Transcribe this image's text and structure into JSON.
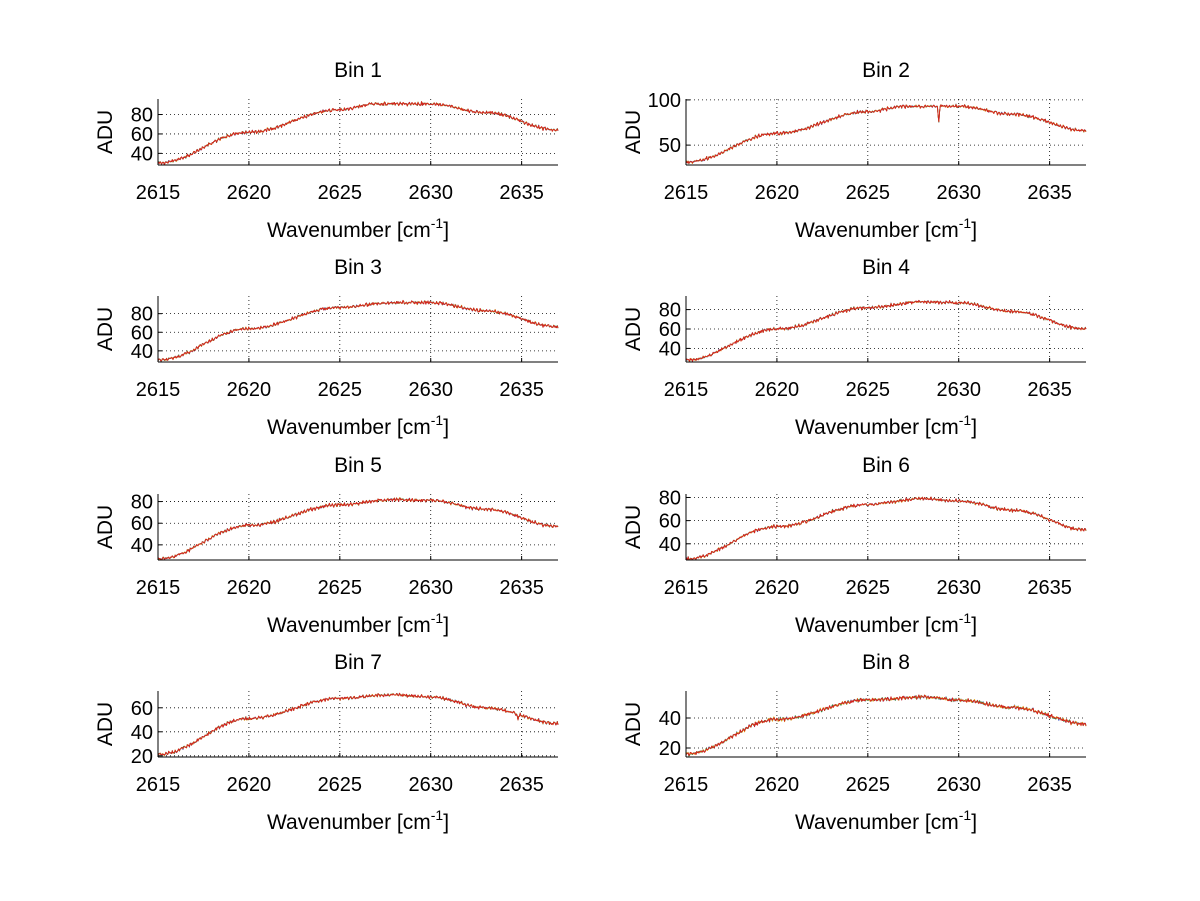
{
  "figure": {
    "background": "#ffffff",
    "series_colors": [
      "#1f3fbf",
      "#2e8b2e",
      "#e8a317",
      "#d42020"
    ],
    "xlabel_main": "Wavenumber [cm",
    "xlabel_sup": "-1",
    "xlabel_end": "]"
  },
  "chart_data": [
    {
      "type": "line",
      "title": "Bin 1",
      "xlabel": "Wavenumber [cm-1]",
      "ylabel": "ADU",
      "xlim": [
        2615,
        2637
      ],
      "ylim": [
        28,
        96
      ],
      "xticks": [
        2615,
        2620,
        2625,
        2630,
        2635
      ],
      "yticks": [
        40,
        60,
        80
      ],
      "grid": true,
      "profile": {
        "x": [
          2615,
          2620,
          2625,
          2627,
          2630,
          2633,
          2637
        ],
        "y": [
          30,
          62,
          85,
          91,
          91,
          82,
          64
        ]
      },
      "dips": []
    },
    {
      "type": "line",
      "title": "Bin 2",
      "xlabel": "Wavenumber [cm-1]",
      "ylabel": "ADU",
      "xlim": [
        2615,
        2637
      ],
      "ylim": [
        28,
        101
      ],
      "xticks": [
        2615,
        2620,
        2625,
        2630,
        2635
      ],
      "yticks": [
        50,
        100
      ],
      "grid": true,
      "profile": {
        "x": [
          2615,
          2620,
          2625,
          2627,
          2630,
          2633,
          2637
        ],
        "y": [
          31,
          63,
          87,
          93,
          93,
          84,
          66
        ]
      },
      "dips": [
        {
          "x": 2628.9,
          "depth": 17
        }
      ]
    },
    {
      "type": "line",
      "title": "Bin 3",
      "xlabel": "Wavenumber [cm-1]",
      "ylabel": "ADU",
      "xlim": [
        2615,
        2637
      ],
      "ylim": [
        28,
        99
      ],
      "xticks": [
        2615,
        2620,
        2625,
        2630,
        2635
      ],
      "yticks": [
        40,
        60,
        80
      ],
      "grid": true,
      "profile": {
        "x": [
          2615,
          2620,
          2625,
          2628,
          2630,
          2633,
          2637
        ],
        "y": [
          30,
          64,
          87,
          92,
          92,
          83,
          66
        ]
      },
      "dips": []
    },
    {
      "type": "line",
      "title": "Bin 4",
      "xlabel": "Wavenumber [cm-1]",
      "ylabel": "ADU",
      "xlim": [
        2615,
        2637
      ],
      "ylim": [
        26,
        94
      ],
      "xticks": [
        2615,
        2620,
        2625,
        2630,
        2635
      ],
      "yticks": [
        40,
        60,
        80
      ],
      "grid": true,
      "profile": {
        "x": [
          2615,
          2620,
          2625,
          2628,
          2630,
          2633,
          2637
        ],
        "y": [
          28,
          60,
          82,
          88,
          87,
          78,
          60
        ]
      },
      "dips": []
    },
    {
      "type": "line",
      "title": "Bin 5",
      "xlabel": "Wavenumber [cm-1]",
      "ylabel": "ADU",
      "xlim": [
        2615,
        2637
      ],
      "ylim": [
        26,
        87
      ],
      "xticks": [
        2615,
        2620,
        2625,
        2630,
        2635
      ],
      "yticks": [
        40,
        60,
        80
      ],
      "grid": true,
      "profile": {
        "x": [
          2615,
          2620,
          2625,
          2628,
          2630,
          2633,
          2637
        ],
        "y": [
          27,
          58,
          77,
          82,
          81,
          73,
          57
        ]
      },
      "dips": []
    },
    {
      "type": "line",
      "title": "Bin 6",
      "xlabel": "Wavenumber [cm-1]",
      "ylabel": "ADU",
      "xlim": [
        2615,
        2637
      ],
      "ylim": [
        26,
        83
      ],
      "xticks": [
        2615,
        2620,
        2625,
        2630,
        2635
      ],
      "yticks": [
        40,
        60,
        80
      ],
      "grid": true,
      "profile": {
        "x": [
          2615,
          2620,
          2625,
          2628,
          2630,
          2633,
          2637
        ],
        "y": [
          27,
          55,
          74,
          79,
          77,
          69,
          52
        ]
      },
      "dips": []
    },
    {
      "type": "line",
      "title": "Bin 7",
      "xlabel": "Wavenumber [cm-1]",
      "ylabel": "ADU",
      "xlim": [
        2615,
        2637
      ],
      "ylim": [
        19,
        74
      ],
      "xticks": [
        2615,
        2620,
        2625,
        2630,
        2635
      ],
      "yticks": [
        20,
        40,
        60
      ],
      "grid": true,
      "profile": {
        "x": [
          2615,
          2620,
          2625,
          2628,
          2630,
          2633,
          2637
        ],
        "y": [
          21,
          51,
          68,
          71,
          69,
          60,
          47
        ]
      },
      "dips": [
        {
          "x": 2634.8,
          "depth": 4
        }
      ]
    },
    {
      "type": "line",
      "title": "Bin 8",
      "xlabel": "Wavenumber [cm-1]",
      "ylabel": "ADU",
      "xlim": [
        2615,
        2637
      ],
      "ylim": [
        14,
        58
      ],
      "xticks": [
        2615,
        2620,
        2625,
        2630,
        2635
      ],
      "yticks": [
        20,
        40
      ],
      "grid": true,
      "profile": {
        "x": [
          2615,
          2620,
          2625,
          2628,
          2630,
          2633,
          2637
        ],
        "y": [
          16,
          39,
          52,
          54,
          52,
          47,
          36
        ]
      },
      "dips": []
    }
  ]
}
